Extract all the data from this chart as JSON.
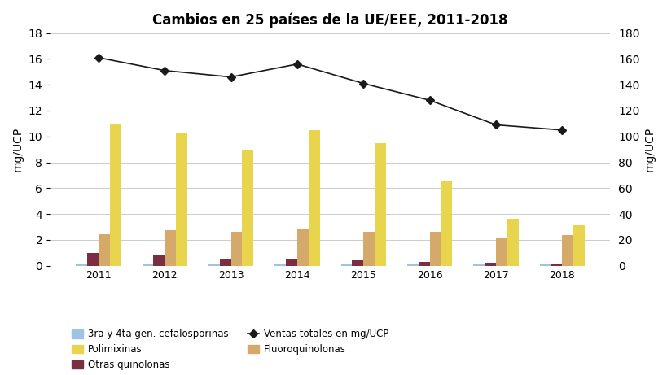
{
  "title": "Cambios en 25 países de la UE/EEE, 2011-2018",
  "years": [
    2011,
    2012,
    2013,
    2014,
    2015,
    2016,
    2017,
    2018
  ],
  "cefalosporinas": [
    0.14,
    0.14,
    0.14,
    0.14,
    0.14,
    0.1,
    0.1,
    0.1
  ],
  "otras_quinolonas": [
    1.0,
    0.85,
    0.55,
    0.5,
    0.4,
    0.28,
    0.25,
    0.2
  ],
  "fluoroquinolonas": [
    2.45,
    2.75,
    2.65,
    2.85,
    2.65,
    2.6,
    2.2,
    2.35
  ],
  "polimixinas": [
    11.0,
    10.3,
    9.0,
    10.5,
    9.5,
    6.5,
    3.6,
    3.2
  ],
  "ventas_totales": [
    161,
    151,
    146,
    156,
    141,
    128,
    109,
    105
  ],
  "color_cefalosporinas": "#9DC3E6",
  "color_otras_quinolonas": "#7B2D42",
  "color_fluoroquinolonas": "#D4A96A",
  "color_polimixinas": "#E8D44D",
  "color_ventas_totales": "#1A1A1A",
  "ylabel_left": "mg/UCP",
  "ylabel_right": "mg/UCP",
  "ylim_left": [
    0,
    18
  ],
  "ylim_right": [
    0,
    180
  ],
  "yticks_left": [
    0,
    2,
    4,
    6,
    8,
    10,
    12,
    14,
    16,
    18
  ],
  "yticks_right": [
    0,
    20,
    40,
    60,
    80,
    100,
    120,
    140,
    160,
    180
  ],
  "legend_labels": [
    "3ra y 4ta gen. cefalosporinas",
    "Polimixinas",
    "Otras quinolonas",
    "Ventas totales en mg/UCP",
    "Fluoroquinolonas"
  ],
  "bar_width": 0.17,
  "background_color": "#FFFFFF",
  "grid_color": "#CCCCCC",
  "fig_width": 8.2,
  "fig_height": 4.61,
  "dpi": 100
}
